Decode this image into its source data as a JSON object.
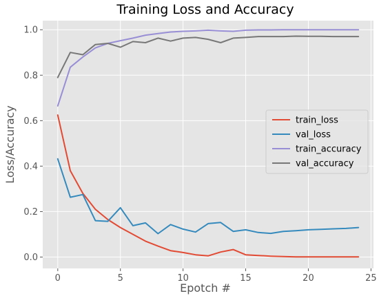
{
  "chart_data": {
    "type": "line",
    "title": "Training Loss and Accuracy",
    "xlabel": "Epotch #",
    "ylabel": "Loss/Accuracy",
    "xlim": [
      -1.2,
      25.2
    ],
    "ylim": [
      -0.05,
      1.04
    ],
    "x_ticks": [
      0,
      5,
      10,
      15,
      20,
      25
    ],
    "y_ticks": [
      0.0,
      0.2,
      0.4,
      0.6,
      0.8,
      1.0
    ],
    "x_tick_labels": [
      "0",
      "5",
      "10",
      "15",
      "20",
      "25"
    ],
    "y_tick_labels": [
      "0.0",
      "0.2",
      "0.4",
      "0.6",
      "0.8",
      "1.0"
    ],
    "grid": true,
    "legend_position": "right",
    "x": [
      0,
      1,
      2,
      3,
      4,
      5,
      6,
      7,
      8,
      9,
      10,
      11,
      12,
      13,
      14,
      15,
      16,
      17,
      18,
      19,
      20,
      21,
      22,
      23,
      24
    ],
    "series": [
      {
        "name": "train_loss",
        "color": "#E24A33",
        "values": [
          0.625,
          0.38,
          0.28,
          0.21,
          0.165,
          0.13,
          0.1,
          0.07,
          0.048,
          0.028,
          0.02,
          0.01,
          0.005,
          0.022,
          0.033,
          0.01,
          0.007,
          0.004,
          0.002,
          0.001,
          0.001,
          0.001,
          0.001,
          0.001,
          0.001
        ]
      },
      {
        "name": "val_loss",
        "color": "#348ABD",
        "values": [
          0.432,
          0.263,
          0.275,
          0.16,
          0.157,
          0.217,
          0.138,
          0.15,
          0.103,
          0.143,
          0.123,
          0.11,
          0.147,
          0.152,
          0.113,
          0.12,
          0.108,
          0.104,
          0.113,
          0.116,
          0.12,
          0.122,
          0.124,
          0.126,
          0.13
        ]
      },
      {
        "name": "train_accuracy",
        "color": "#988ED5",
        "values": [
          0.665,
          0.835,
          0.88,
          0.92,
          0.94,
          0.952,
          0.963,
          0.976,
          0.983,
          0.99,
          0.993,
          0.995,
          0.998,
          0.995,
          0.993,
          0.998,
          0.999,
          0.999,
          1.0,
          1.0,
          1.0,
          1.0,
          1.0,
          1.0,
          1.0
        ]
      },
      {
        "name": "val_accuracy",
        "color": "#777777",
        "values": [
          0.79,
          0.9,
          0.89,
          0.935,
          0.94,
          0.923,
          0.948,
          0.943,
          0.963,
          0.95,
          0.963,
          0.966,
          0.958,
          0.943,
          0.963,
          0.966,
          0.97,
          0.97,
          0.97,
          0.972,
          0.971,
          0.971,
          0.97,
          0.97,
          0.97
        ]
      }
    ]
  }
}
